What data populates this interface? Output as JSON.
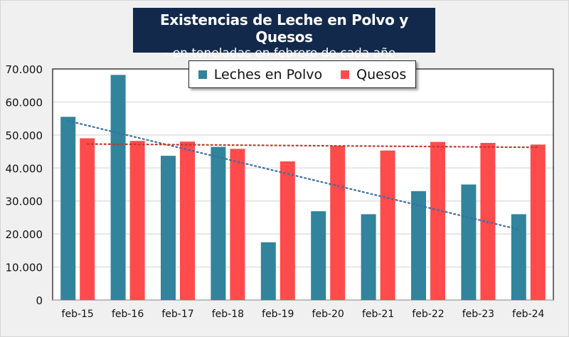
{
  "chart_data": {
    "type": "bar",
    "title": "Existencias de Leche en Polvo y Quesos",
    "subtitle": "- en toneladas en febrero de cada año -",
    "xlabel": "",
    "ylabel": "",
    "categories": [
      "feb-15",
      "feb-16",
      "feb-17",
      "feb-18",
      "feb-19",
      "feb-20",
      "feb-21",
      "feb-22",
      "feb-23",
      "feb-24"
    ],
    "series": [
      {
        "name": "Leches en Polvo",
        "color": "#31849b",
        "values": [
          55500,
          68200,
          43700,
          46400,
          17500,
          26900,
          26000,
          33000,
          35000,
          26000
        ]
      },
      {
        "name": "Quesos",
        "color": "#ff4b4b",
        "values": [
          49000,
          48200,
          48000,
          45800,
          42000,
          46700,
          45300,
          47900,
          47600,
          47100
        ]
      }
    ],
    "trendlines": [
      {
        "series": "Leches en Polvo",
        "type": "linear",
        "style": "dotted",
        "color": "#3a6ea5"
      },
      {
        "series": "Quesos",
        "type": "linear",
        "style": "dotted",
        "color": "#c0392b"
      }
    ],
    "ylim": [
      0,
      70000
    ],
    "yticks": [
      0,
      10000,
      20000,
      30000,
      40000,
      50000,
      60000,
      70000
    ],
    "ytick_labels": [
      "0",
      "10.000",
      "20.000",
      "30.000",
      "40.000",
      "50.000",
      "60.000",
      "70.000"
    ],
    "grid": true,
    "legend_position": "top-center"
  }
}
